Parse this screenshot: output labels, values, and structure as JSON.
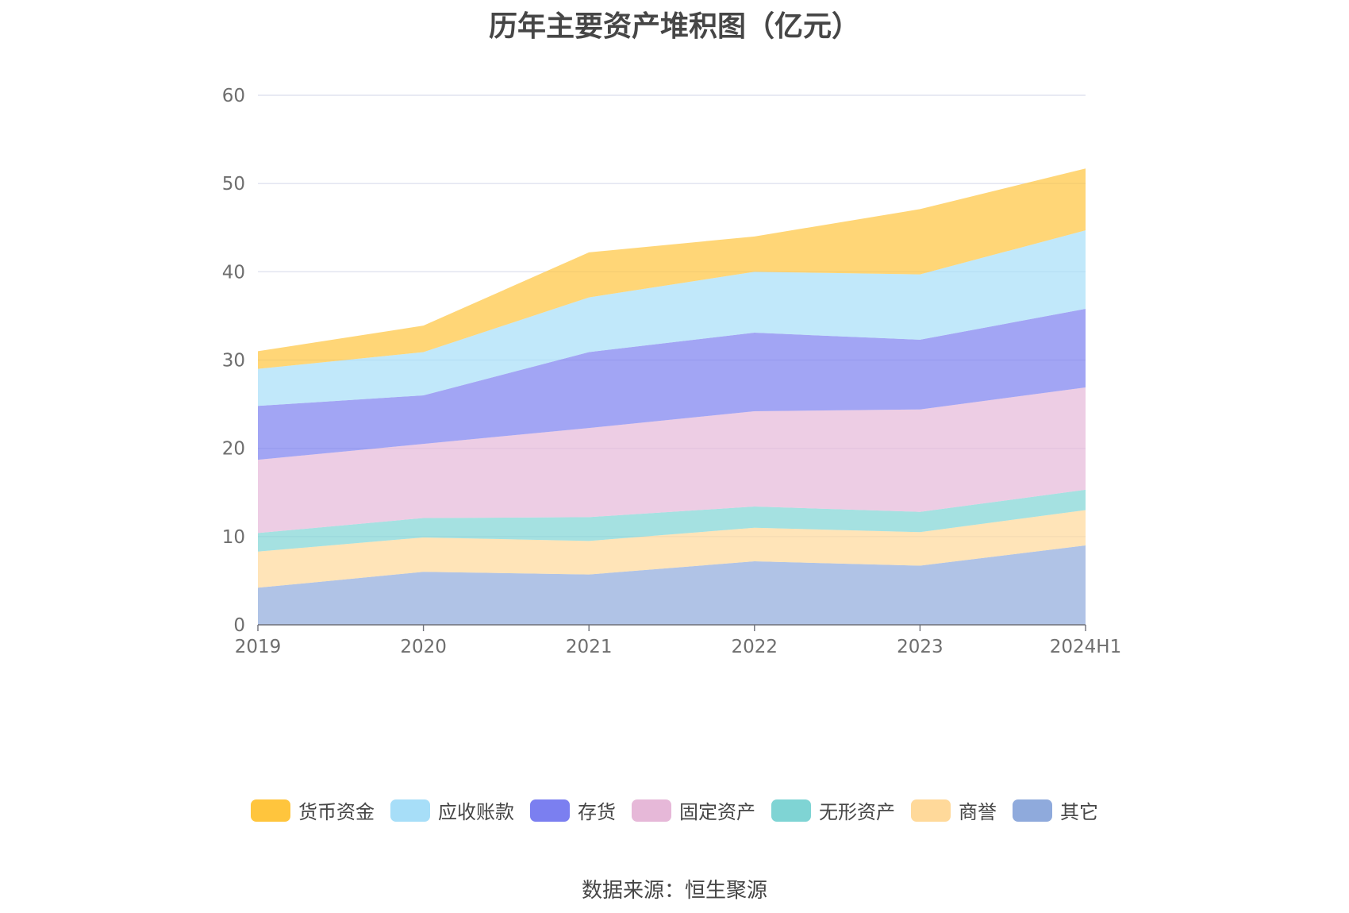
{
  "chart_data": {
    "type": "area",
    "stacked": true,
    "title": "历年主要资产堆积图（亿元）",
    "x": [
      "2019",
      "2020",
      "2021",
      "2022",
      "2023",
      "2024H1"
    ],
    "ylim": [
      0,
      60
    ],
    "yticks": [
      0,
      10,
      20,
      30,
      40,
      50,
      60
    ],
    "grid": true,
    "legend_position": "bottom",
    "series": [
      {
        "name": "其它",
        "color": "#8FAADC",
        "values": [
          4.2,
          6.0,
          5.7,
          7.2,
          6.7,
          9.0
        ]
      },
      {
        "name": "商誉",
        "color": "#FFD99A",
        "values": [
          4.1,
          3.9,
          3.8,
          3.8,
          3.8,
          4.0
        ]
      },
      {
        "name": "无形资产",
        "color": "#7FD4D4",
        "values": [
          2.1,
          2.2,
          2.7,
          2.4,
          2.3,
          2.3
        ]
      },
      {
        "name": "固定资产",
        "color": "#E6B8D8",
        "values": [
          8.3,
          8.4,
          10.1,
          10.8,
          11.6,
          11.6
        ]
      },
      {
        "name": "存货",
        "color": "#7B7FF0",
        "values": [
          6.1,
          5.5,
          8.6,
          8.9,
          7.9,
          8.9
        ]
      },
      {
        "name": "应收账款",
        "color": "#A7DEF8",
        "values": [
          4.2,
          4.9,
          6.2,
          6.9,
          7.4,
          8.9
        ]
      },
      {
        "name": "货币资金",
        "color": "#FFC53D",
        "values": [
          2.0,
          3.0,
          5.1,
          4.0,
          7.4,
          7.0
        ]
      }
    ],
    "legend_order": [
      "货币资金",
      "应收账款",
      "存货",
      "固定资产",
      "无形资产",
      "商誉",
      "其它"
    ]
  },
  "source": "数据来源：恒生聚源"
}
